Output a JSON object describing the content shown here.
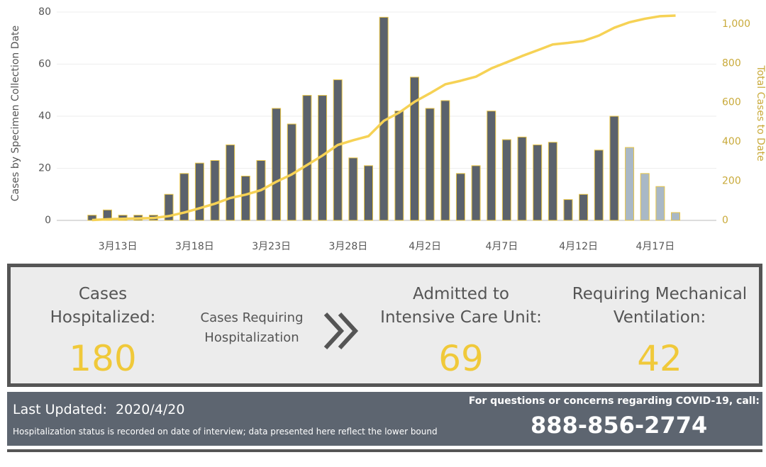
{
  "chart_data": {
    "type": "bar_line",
    "categories": [
      null,
      null,
      "3月13日",
      null,
      null,
      null,
      null,
      "3月18日",
      null,
      null,
      null,
      null,
      "3月23日",
      null,
      null,
      null,
      null,
      "3月28日",
      null,
      null,
      null,
      null,
      "4月2日",
      null,
      null,
      null,
      null,
      "4月7日",
      null,
      null,
      null,
      null,
      "4月12日",
      null,
      null,
      null,
      null,
      "4月17日",
      null
    ],
    "series": [
      {
        "type": "bar",
        "values": [
          2,
          4,
          2,
          2,
          2,
          10,
          18,
          22,
          23,
          29,
          17,
          23,
          43,
          37,
          48,
          48,
          54,
          24,
          21,
          78,
          42,
          55,
          43,
          46,
          18,
          21,
          42,
          31,
          32,
          29,
          30,
          8,
          10,
          27,
          40,
          28,
          18,
          13,
          3
        ],
        "colors": [
          "#5b626c",
          "#5b626c",
          "#5b626c",
          "#5b626c",
          "#5b626c",
          "#5b626c",
          "#5b626c",
          "#5b626c",
          "#5b626c",
          "#5b626c",
          "#5b626c",
          "#5b626c",
          "#5b626c",
          "#5b626c",
          "#5b626c",
          "#5b626c",
          "#5b626c",
          "#5b626c",
          "#5b626c",
          "#5b626c",
          "#5b626c",
          "#5b626c",
          "#5b626c",
          "#5b626c",
          "#5b626c",
          "#5b626c",
          "#5b626c",
          "#5b626c",
          "#5b626c",
          "#5b626c",
          "#5b626c",
          "#5b626c",
          "#5b626c",
          "#5b626c",
          "#5b626c",
          "#a9b8c6",
          "#a9b8c6",
          "#a9b8c6",
          "#a9b8c6"
        ],
        "outline": "#e8c547"
      },
      {
        "type": "line",
        "axis": "y2",
        "color": "#f6d255",
        "values": [
          2,
          6,
          8,
          10,
          12,
          22,
          40,
          62,
          85,
          114,
          131,
          154,
          197,
          234,
          282,
          330,
          384,
          408,
          429,
          507,
          549,
          604,
          647,
          693,
          711,
          732,
          774,
          805,
          837,
          866,
          896,
          904,
          914,
          941,
          981,
          1009,
          1027,
          1040,
          1043
        ]
      }
    ],
    "y_label": "Cases by Specimen Collection Date",
    "y2_label": "Total Cases to Date",
    "ylim": [
      0,
      80
    ],
    "yticks": [
      0,
      20,
      40,
      60,
      80
    ],
    "y2lim": [
      0,
      1061
    ],
    "y2ticks": [
      0,
      200,
      400,
      600,
      800,
      {
        "value": 1000,
        "label": "1,000"
      }
    ],
    "grid": true
  },
  "stats": {
    "hospitalized": {
      "label_1": "Cases",
      "label_2": "Hospitalized:",
      "value": 180
    },
    "arrow_label_1": "Cases Requiring",
    "arrow_label_2": "Hospitalization",
    "icu": {
      "label_1": "Admitted to",
      "label_2": "Intensive Care Unit:",
      "value": 69
    },
    "ventilation": {
      "label_1": "Requiring Mechanical",
      "label_2": "Ventilation:",
      "value": 42
    }
  },
  "footer": {
    "updated_label": "Last Updated:",
    "updated_date": "2020/4/20",
    "note": "Hospitalization status is recorded on date of interview; data presented here reflect the lower bound",
    "contact_label": "For questions or concerns regarding COVID-19, call:",
    "phone": "888-856-2774"
  }
}
